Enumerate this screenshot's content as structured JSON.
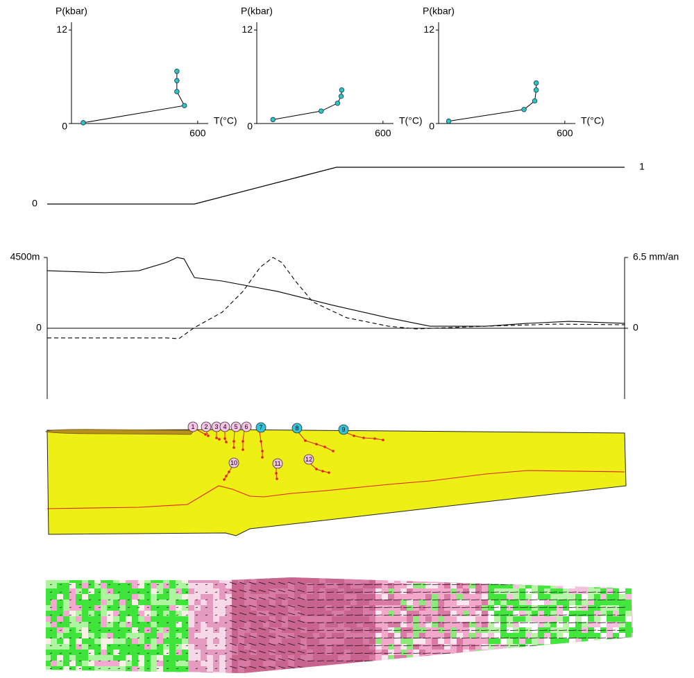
{
  "chart_data": [
    {
      "type": "line",
      "x_label": "T(°C)",
      "y_label": "P(kbar)",
      "color": "#2fc4bd",
      "x": [
        56,
        537,
        501,
        501,
        501
      ],
      "values": [
        0.1,
        2.3,
        4.1,
        5.5,
        6.7
      ],
      "xlim": [
        0,
        650
      ],
      "ylim": [
        0,
        13
      ],
      "xticks": [
        600
      ],
      "yticks": [
        0,
        12
      ]
    },
    {
      "type": "line",
      "x_label": "T(°C)",
      "y_label": "P(kbar)",
      "color": "#2fc4bd",
      "x": [
        77,
        306,
        384,
        401,
        404
      ],
      "values": [
        0.5,
        1.6,
        2.6,
        3.5,
        4.3
      ],
      "xlim": [
        0,
        650
      ],
      "ylim": [
        0,
        13
      ],
      "xticks": [
        600
      ],
      "yticks": [
        0,
        12
      ]
    },
    {
      "type": "line",
      "x_label": "T(°C)",
      "y_label": "P(kbar)",
      "color": "#2fc4bd",
      "x": [
        48,
        406,
        457,
        464,
        464
      ],
      "values": [
        0.3,
        1.8,
        2.9,
        4.3,
        5.2
      ],
      "xlim": [
        0,
        650
      ],
      "ylim": [
        0,
        13
      ],
      "xticks": [
        600
      ],
      "yticks": [
        0,
        12
      ]
    },
    {
      "type": "line",
      "x": [
        0,
        0.255,
        0.501,
        1
      ],
      "values": [
        0,
        0,
        1,
        1
      ],
      "xlim": [
        0,
        1
      ],
      "ylim": [
        0,
        1
      ],
      "yticks": [
        0,
        1
      ]
    },
    {
      "type": "line",
      "xlim": [
        0,
        1
      ],
      "ylim": [
        -4500,
        4500
      ],
      "yticks": [
        {
          "value": 4500,
          "label": "4500m"
        },
        0
      ],
      "y2lim": [
        -6.5,
        6.5
      ],
      "y2ticks": [
        {
          "value": 6.5,
          "label": "6.5 mm/an"
        },
        0
      ],
      "series": [
        {
          "color": "#000000",
          "x": [
            0,
            0.099,
            0.159,
            0.207,
            0.225,
            0.237,
            0.255,
            0.303,
            0.399,
            0.495,
            0.591,
            0.663,
            0.76,
            0.832,
            0.904,
            1
          ],
          "values": [
            3660,
            3530,
            3660,
            4190,
            4500,
            4410,
            3220,
            3000,
            2340,
            1460,
            660,
            130,
            130,
            310,
            440,
            310
          ]
        },
        {
          "color": "#000000",
          "axis": "y2",
          "dash": true,
          "x": [
            0,
            0.099,
            0.207,
            0.228,
            0.255,
            0.303,
            0.339,
            0.369,
            0.391,
            0.406,
            0.43,
            0.46,
            0.519,
            0.591,
            0.639,
            0.76,
            0.88,
            1
          ],
          "values": [
            -0.89,
            -0.89,
            -0.89,
            -0.96,
            0.06,
            1.47,
            3.38,
            5.61,
            6.5,
            6.05,
            4.33,
            2.42,
            0.96,
            0.19,
            -0.06,
            0.19,
            0.38,
            0.32
          ]
        }
      ]
    }
  ],
  "section": {
    "markers": [
      {
        "label": "1",
        "color": "#f5c3e6"
      },
      {
        "label": "2",
        "color": "#f5c3e6"
      },
      {
        "label": "3",
        "color": "#f5c3e6"
      },
      {
        "label": "4",
        "color": "#f5c3e6"
      },
      {
        "label": "5",
        "color": "#f5c3e6"
      },
      {
        "label": "6",
        "color": "#f5c3e6"
      },
      {
        "label": "7",
        "color": "#33c3d9"
      },
      {
        "label": "8",
        "color": "#33c3d9"
      },
      {
        "label": "9",
        "color": "#33c3d9"
      },
      {
        "label": "10",
        "color": "#f5c3e6"
      },
      {
        "label": "11",
        "color": "#f5c3e6"
      },
      {
        "label": "12",
        "color": "#f5c3e6"
      }
    ]
  }
}
